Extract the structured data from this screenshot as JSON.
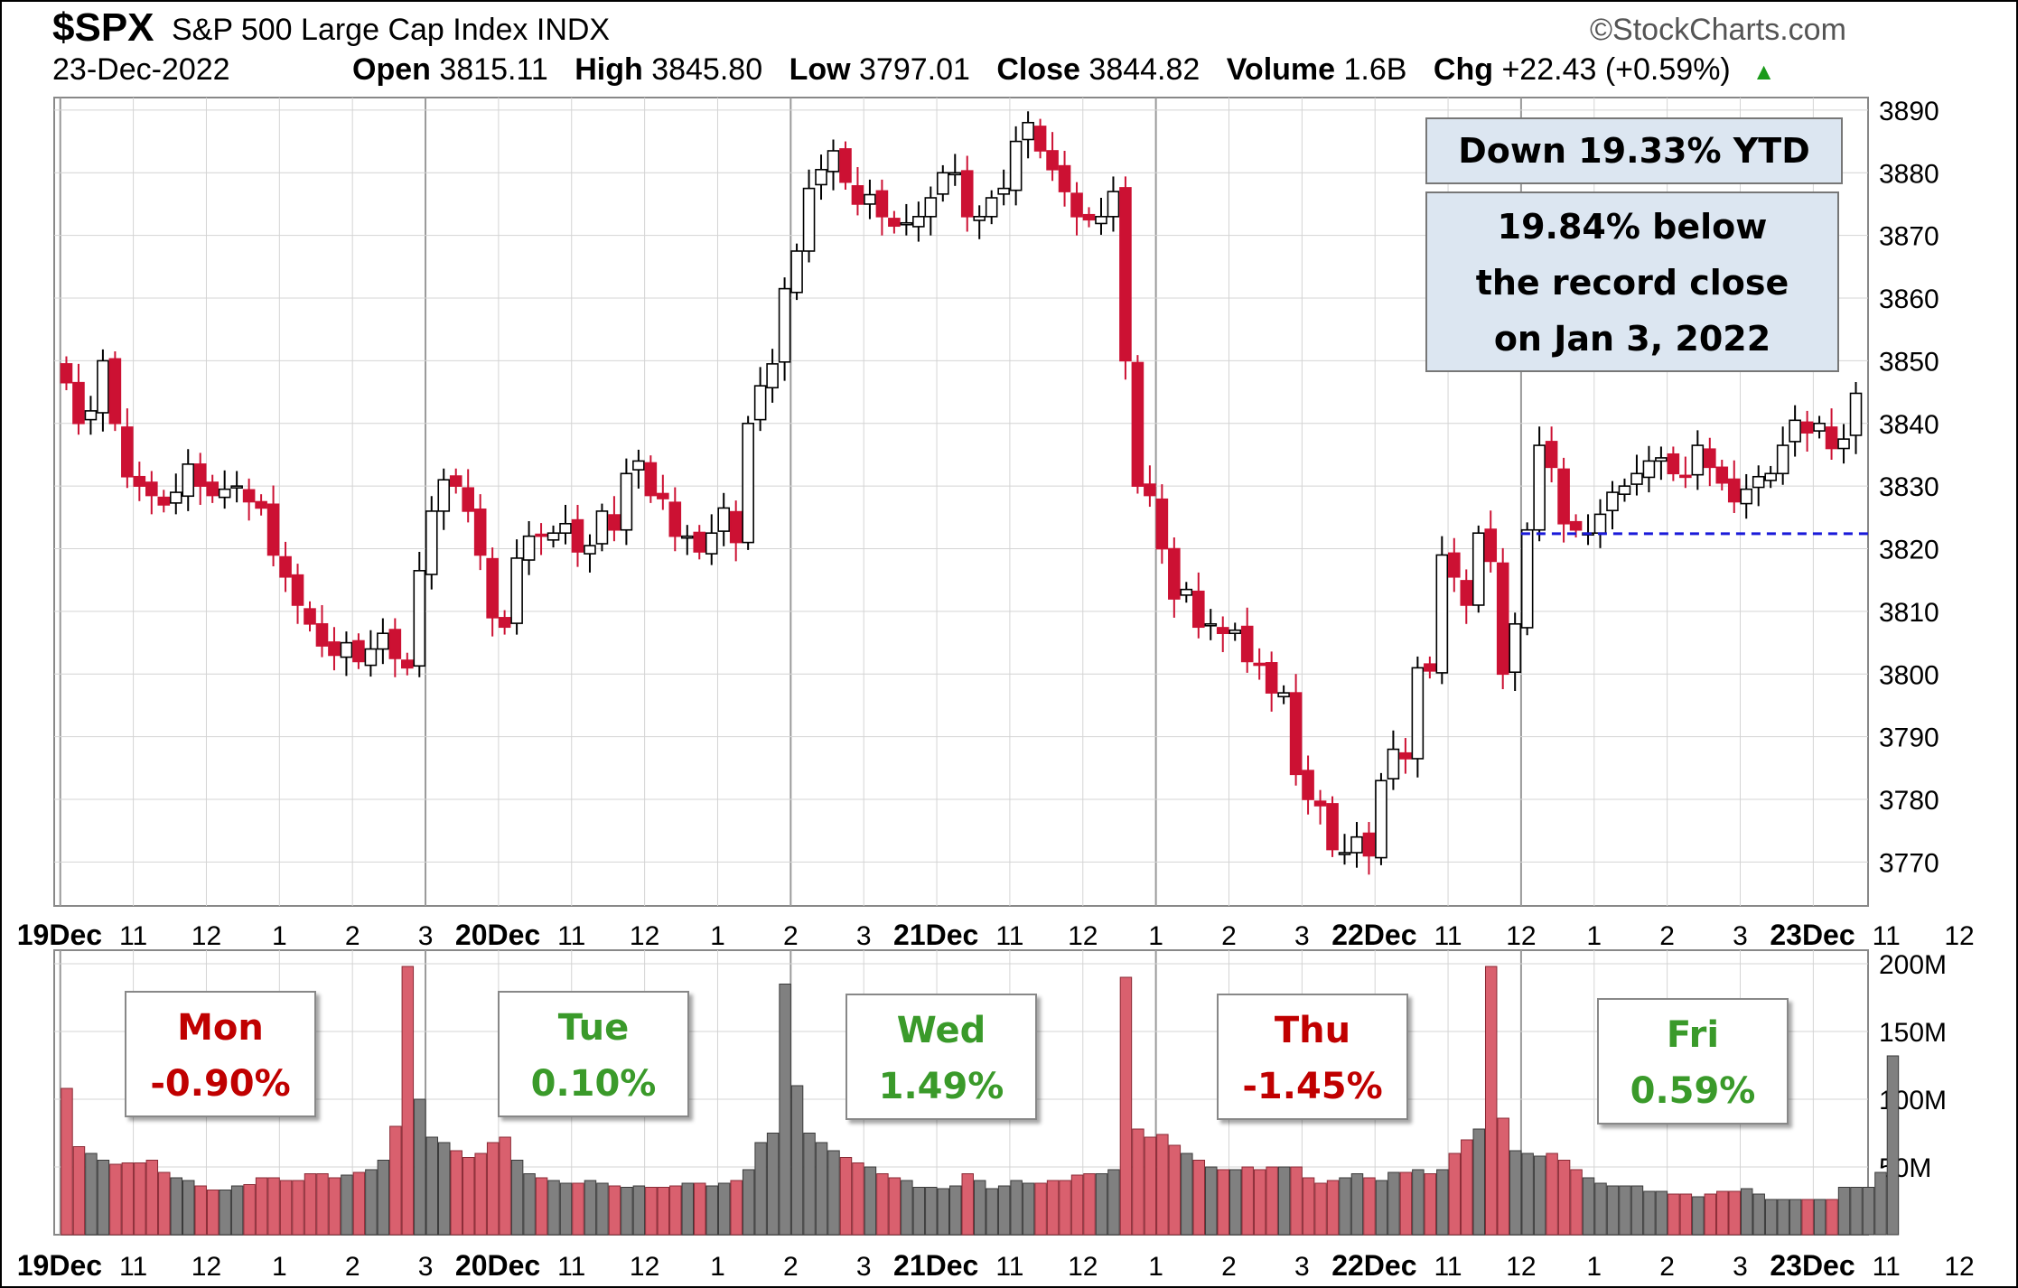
{
  "header": {
    "symbol": "$SPX",
    "name": "S&P 500 Large Cap Index  INDX",
    "date": "23-Dec-2022",
    "brand": "©StockCharts.com",
    "stats": [
      {
        "label": "Open",
        "value": "3815.11"
      },
      {
        "label": "High",
        "value": "3845.80"
      },
      {
        "label": "Low",
        "value": "3797.01"
      },
      {
        "label": "Close",
        "value": "3844.82"
      },
      {
        "label": "Volume",
        "value": "1.6B"
      },
      {
        "label": "Chg",
        "value": "+22.43 (+0.59%)"
      }
    ],
    "chg_arrow": "▲"
  },
  "annotations": {
    "ytd": "Down 19.33% YTD",
    "record_lines": [
      "19.84% below",
      "the record close",
      "on Jan 3, 2022"
    ]
  },
  "day_boxes": [
    {
      "day": "Mon",
      "change": "-0.90%",
      "direction": "down"
    },
    {
      "day": "Tue",
      "change": "0.10%",
      "direction": "up"
    },
    {
      "day": "Wed",
      "change": "1.49%",
      "direction": "up"
    },
    {
      "day": "Thu",
      "change": "-1.45%",
      "direction": "down"
    },
    {
      "day": "Fri",
      "change": "0.59%",
      "direction": "up"
    }
  ],
  "colors": {
    "up": "#ffffff",
    "down": "#cc1133",
    "vol_up": "#808080",
    "vol_down": "#d9606e",
    "reference_line": "#1a1ad9",
    "grid": "#d4d4d4",
    "annotation_fill": "#dce6f1"
  },
  "chart_data": [
    {
      "type": "candlestick",
      "title": "$SPX S&P 500 Large Cap Index INDX",
      "interval": "5-minute",
      "ylim": [
        3763,
        3892
      ],
      "y_ticks": [
        3770,
        3780,
        3790,
        3800,
        3810,
        3820,
        3830,
        3840,
        3850,
        3860,
        3870,
        3880,
        3890
      ],
      "x_tick_labels": [
        "19Dec",
        "11",
        "12",
        "1",
        "2",
        "3",
        "20Dec",
        "11",
        "12",
        "1",
        "2",
        "3",
        "21Dec",
        "11",
        "12",
        "1",
        "2",
        "3",
        "22Dec",
        "11",
        "12",
        "1",
        "2",
        "3",
        "23Dec",
        "11",
        "12",
        "1",
        "2",
        "3"
      ],
      "reference_line": {
        "y": 3822.4,
        "from_day": "23Dec",
        "style": "dashed"
      },
      "closes": [
        3846.5,
        3840.0,
        3842.0,
        3850.0,
        3840.0,
        3831.5,
        3830.0,
        3828.5,
        3827.0,
        3829.0,
        3833.5,
        3830.0,
        3828.5,
        3829.5,
        3830.0,
        3827.5,
        3826.5,
        3819.0,
        3815.5,
        3811.0,
        3808.0,
        3804.5,
        3803.0,
        3805.0,
        3802.0,
        3804.0,
        3806.5,
        3802.5,
        3801.0,
        3816.5,
        3826.0,
        3831.0,
        3830.0,
        3826.0,
        3819.0,
        3809.0,
        3807.5,
        3818.5,
        3822.0,
        3822.0,
        3822.5,
        3824.0,
        3819.5,
        3820.5,
        3826.0,
        3823.0,
        3832.0,
        3834.0,
        3828.5,
        3828.0,
        3822.0,
        3822.0,
        3819.5,
        3822.5,
        3826.5,
        3821.0,
        3840.0,
        3846.0,
        3849.5,
        3861.5,
        3867.5,
        3877.5,
        3880.5,
        3883.5,
        3878.5,
        3875.0,
        3876.5,
        3873.0,
        3871.5,
        3872.0,
        3873.0,
        3876.0,
        3880.0,
        3880.0,
        3873.0,
        3873.0,
        3876.0,
        3877.5,
        3885.0,
        3888.0,
        3883.5,
        3880.5,
        3877.0,
        3873.0,
        3872.5,
        3873.0,
        3877.0,
        3850.0,
        3830.0,
        3828.5,
        3820.0,
        3812.0,
        3813.5,
        3807.5,
        3808.0,
        3806.5,
        3807.0,
        3802.0,
        3801.5,
        3797.0,
        3797.0,
        3784.0,
        3780.0,
        3779.0,
        3772.0,
        3771.5,
        3774.0,
        3771.0,
        3783.0,
        3788.0,
        3786.5,
        3801.0,
        3800.5,
        3819.0,
        3815.5,
        3811.0,
        3822.5,
        3818.0,
        3800.0,
        3808.0,
        3823.0,
        3836.5,
        3833.0,
        3824.0,
        3823.0,
        3822.5,
        3825.5,
        3829.0,
        3830.0,
        3832.0,
        3834.0,
        3834.5,
        3832.0,
        3831.5,
        3836.5,
        3833.0,
        3830.5,
        3827.5,
        3829.5,
        3831.5,
        3832.0,
        3836.5,
        3840.5,
        3838.5,
        3840.0,
        3836.0,
        3837.5,
        3844.8
      ]
    },
    {
      "type": "bar",
      "title": "Volume",
      "ylim": [
        0,
        210
      ],
      "y_unit": "M",
      "y_ticks": [
        50,
        100,
        150,
        200
      ],
      "y_tick_labels": [
        "50M",
        "100M",
        "150M",
        "200M"
      ],
      "values": [
        108,
        65,
        60,
        55,
        52,
        53,
        53,
        55,
        46,
        42,
        40,
        36,
        33,
        33,
        36,
        37,
        42,
        42,
        40,
        40,
        45,
        45,
        42,
        44,
        46,
        48,
        55,
        80,
        198,
        100,
        72,
        68,
        62,
        57,
        60,
        68,
        72,
        55,
        45,
        42,
        40,
        38,
        38,
        40,
        38,
        36,
        35,
        36,
        35,
        35,
        36,
        38,
        38,
        36,
        38,
        40,
        48,
        68,
        75,
        185,
        110,
        75,
        68,
        62,
        57,
        53,
        50,
        45,
        42,
        40,
        35,
        35,
        34,
        36,
        45,
        40,
        34,
        36,
        40,
        38,
        38,
        40,
        40,
        44,
        45,
        45,
        48,
        190,
        78,
        72,
        74,
        66,
        60,
        55,
        50,
        48,
        48,
        50,
        48,
        50,
        50,
        50,
        42,
        38,
        40,
        42,
        45,
        42,
        40,
        46,
        46,
        48,
        45,
        48,
        60,
        70,
        78,
        198,
        86,
        62,
        60,
        58,
        60,
        55,
        48,
        42,
        38,
        36,
        36,
        36,
        32,
        32,
        30,
        30,
        28,
        30,
        32,
        32,
        34,
        30,
        26,
        26,
        26,
        26,
        26,
        26,
        35,
        35,
        35,
        46,
        132
      ],
      "series_colors_by_candle_direction": true
    }
  ]
}
